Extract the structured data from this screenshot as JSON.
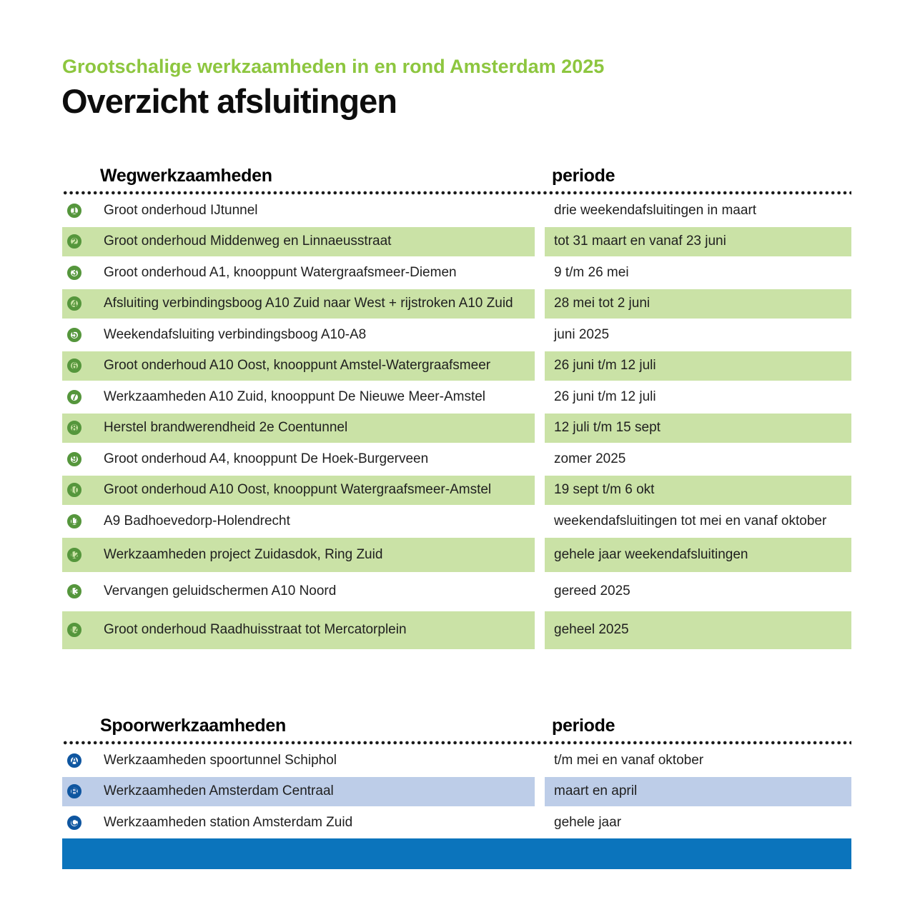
{
  "page": {
    "subtitle": "Grootschalige werkzaamheden in en rond Amsterdam 2025",
    "title": "Overzicht afsluitingen"
  },
  "colors": {
    "subtitle_green": "#8dc63f",
    "row_green": "#cae2a6",
    "circle_green": "#55963c",
    "circle_blue": "#0f56a0",
    "row_blue": "#bdcde8",
    "bar_blue": "#0b74bc"
  },
  "road_table": {
    "col1_header": "Wegwerkzaamheden",
    "col2_header": "periode",
    "rows": [
      {
        "num": "1",
        "work": "Groot onderhoud IJtunnel",
        "period": "drie weekendafsluitingen in maart",
        "highlight": false
      },
      {
        "num": "2",
        "work": "Groot onderhoud Middenweg en Linnaeusstraat",
        "period": "tot 31 maart en vanaf 23 juni",
        "highlight": true
      },
      {
        "num": "3",
        "work": "Groot onderhoud A1, knooppunt Watergraafsmeer-Diemen",
        "period": "9 t/m 26 mei",
        "highlight": false
      },
      {
        "num": "4",
        "work": "Afsluiting verbindingsboog A10 Zuid naar West + rijstroken A10 Zuid",
        "period": "28 mei tot 2 juni",
        "highlight": true
      },
      {
        "num": "5",
        "work": "Weekendafsluiting verbindingsboog A10-A8",
        "period": "juni 2025",
        "highlight": false
      },
      {
        "num": "6",
        "work": "Groot onderhoud A10 Oost, knooppunt Amstel-Watergraafsmeer",
        "period": "26 juni t/m 12 juli",
        "highlight": true
      },
      {
        "num": "7",
        "work": "Werkzaamheden A10 Zuid, knooppunt De Nieuwe Meer-Amstel",
        "period": "26 juni t/m 12 juli",
        "highlight": false
      },
      {
        "num": "8",
        "work": "Herstel brandwerendheid 2e Coentunnel",
        "period": "12 juli t/m 15 sept",
        "highlight": true
      },
      {
        "num": "9",
        "work": "Groot onderhoud A4, knooppunt De Hoek-Burgerveen",
        "period": "zomer 2025",
        "highlight": false
      },
      {
        "num": "10",
        "work": "Groot onderhoud A10 Oost, knooppunt Watergraafsmeer-Amstel",
        "period": "19 sept t/m 6 okt",
        "highlight": true
      },
      {
        "num": "11",
        "work": "A9 Badhoevedorp-Holendrecht",
        "period": "weekendafsluitingen tot mei en vanaf oktober",
        "highlight": false
      },
      {
        "num": "12",
        "work": "Werkzaamheden project Zuidasdok, Ring Zuid",
        "period": "gehele jaar weekendafsluitingen",
        "highlight": true
      },
      {
        "num": "13",
        "work": "Vervangen geluidschermen A10 Noord",
        "period": "gereed 2025",
        "highlight": false
      },
      {
        "num": "14",
        "work": "Groot onderhoud Raadhuisstraat tot Mercatorplein",
        "period": "geheel 2025",
        "highlight": true
      }
    ]
  },
  "rail_table": {
    "col1_header": "Spoorwerkzaamheden",
    "col2_header": "periode",
    "rows": [
      {
        "num": "A",
        "work": "Werkzaamheden spoortunnel Schiphol",
        "period": "t/m mei en vanaf oktober",
        "highlight": false
      },
      {
        "num": "B",
        "work": "Werkzaamheden Amsterdam Centraal",
        "period": "maart en april",
        "highlight": true
      },
      {
        "num": "C",
        "work": "Werkzaamheden station Amsterdam Zuid",
        "period": "gehele jaar",
        "highlight": false
      }
    ]
  }
}
